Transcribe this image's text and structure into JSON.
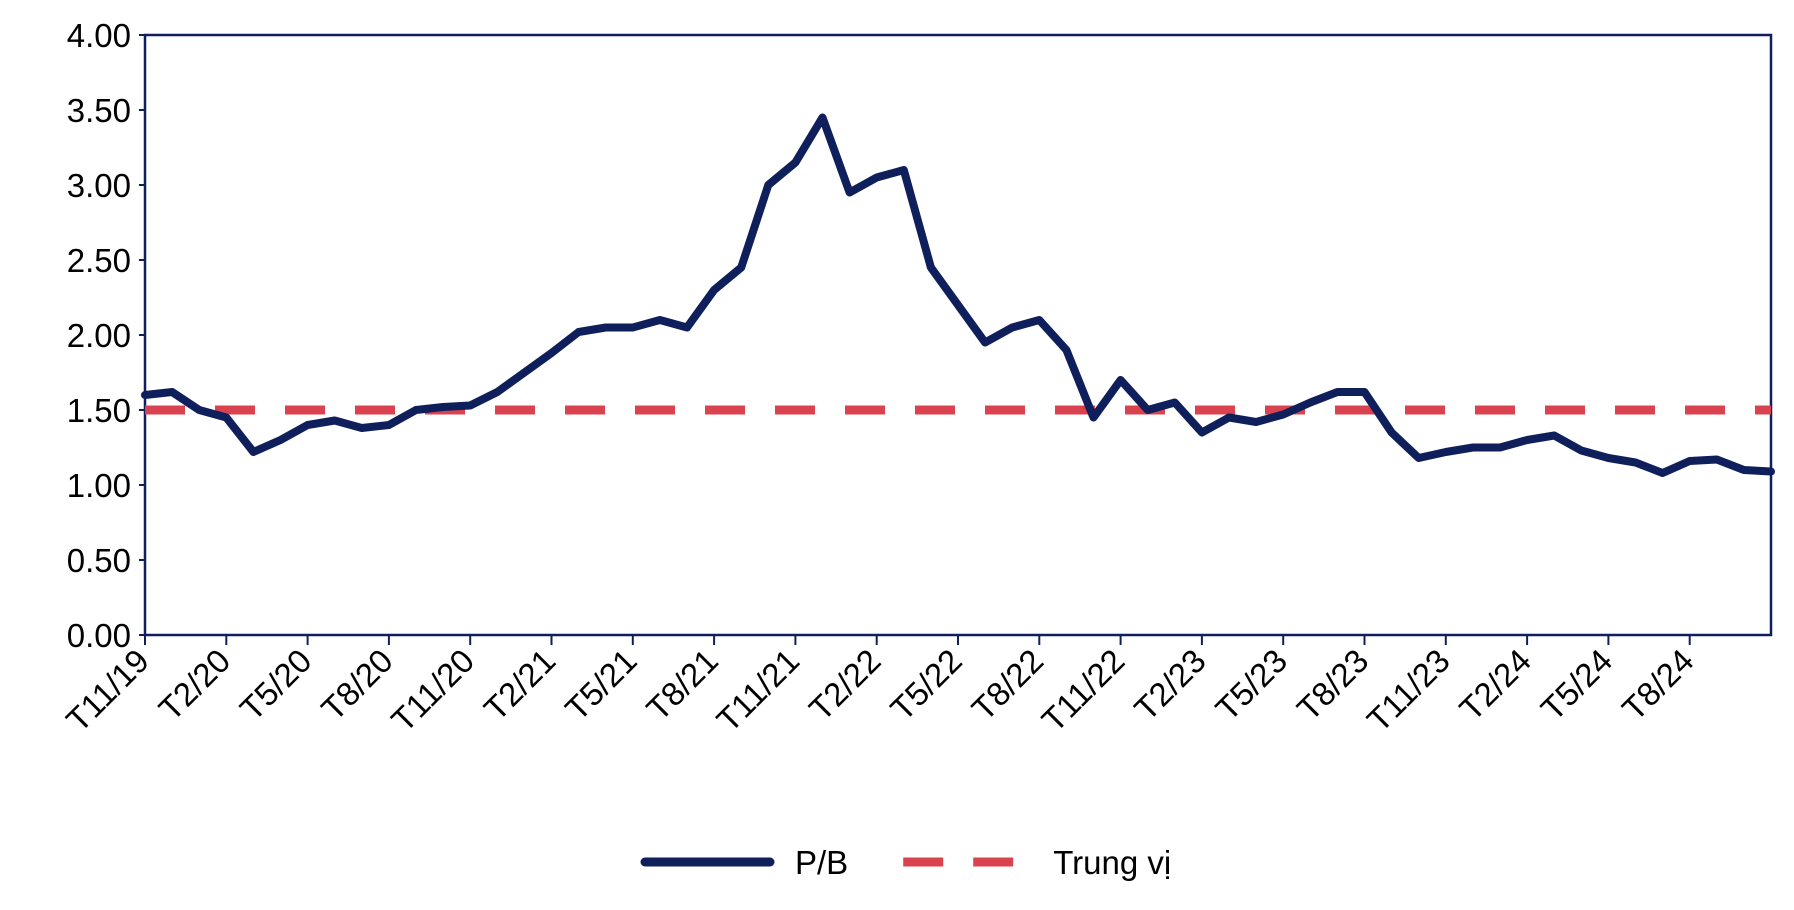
{
  "chart_data": {
    "type": "line",
    "categories": [
      "T11/19",
      null,
      null,
      "T2/20",
      null,
      null,
      "T5/20",
      null,
      null,
      "T8/20",
      null,
      null,
      "T11/20",
      null,
      null,
      "T2/21",
      null,
      null,
      "T5/21",
      null,
      null,
      "T8/21",
      null,
      null,
      "T11/21",
      null,
      null,
      "T2/22",
      null,
      null,
      "T5/22",
      null,
      null,
      "T8/22",
      null,
      null,
      "T11/22",
      null,
      null,
      "T2/23",
      null,
      null,
      "T5/23",
      null,
      null,
      "T8/23",
      null,
      null,
      "T11/23",
      null,
      null,
      "T2/24",
      null,
      null,
      "T5/24",
      null,
      null,
      "T8/24",
      null,
      null,
      null
    ],
    "series": [
      {
        "name": "P/B",
        "color": "#0f1f5c",
        "dashed": false,
        "values": [
          1.6,
          1.62,
          1.5,
          1.45,
          1.22,
          1.3,
          1.4,
          1.43,
          1.38,
          1.4,
          1.5,
          1.52,
          1.53,
          1.62,
          1.75,
          1.88,
          2.02,
          2.05,
          2.05,
          2.1,
          2.05,
          2.3,
          2.45,
          3.0,
          3.15,
          3.45,
          2.95,
          3.05,
          3.1,
          2.45,
          2.2,
          1.95,
          2.05,
          2.1,
          1.9,
          1.45,
          1.7,
          1.5,
          1.55,
          1.35,
          1.45,
          1.42,
          1.47,
          1.55,
          1.62,
          1.62,
          1.35,
          1.18,
          1.22,
          1.25,
          1.25,
          1.3,
          1.33,
          1.23,
          1.18,
          1.15,
          1.08,
          1.16,
          1.17,
          1.1,
          1.09
        ]
      },
      {
        "name": "Trung vị",
        "color": "#d9434f",
        "dashed": true,
        "values": [
          1.5,
          1.5,
          1.5,
          1.5,
          1.5,
          1.5,
          1.5,
          1.5,
          1.5,
          1.5,
          1.5,
          1.5,
          1.5,
          1.5,
          1.5,
          1.5,
          1.5,
          1.5,
          1.5,
          1.5,
          1.5,
          1.5,
          1.5,
          1.5,
          1.5,
          1.5,
          1.5,
          1.5,
          1.5,
          1.5,
          1.5,
          1.5,
          1.5,
          1.5,
          1.5,
          1.5,
          1.5,
          1.5,
          1.5,
          1.5,
          1.5,
          1.5,
          1.5,
          1.5,
          1.5,
          1.5,
          1.5,
          1.5,
          1.5,
          1.5,
          1.5,
          1.5,
          1.5,
          1.5,
          1.5,
          1.5,
          1.5,
          1.5,
          1.5,
          1.5,
          1.5
        ]
      }
    ],
    "ylim": [
      0,
      4
    ],
    "yticks": [
      {
        "value": 0,
        "label": "0.00"
      },
      {
        "value": 0.5,
        "label": "0.50"
      },
      {
        "value": 1,
        "label": "1.00"
      },
      {
        "value": 1.5,
        "label": "1.50"
      },
      {
        "value": 2,
        "label": "2.00"
      },
      {
        "value": 2.5,
        "label": "2.50"
      },
      {
        "value": 3,
        "label": "3.00"
      },
      {
        "value": 3.5,
        "label": "3.50"
      },
      {
        "value": 4,
        "label": "4.00"
      }
    ],
    "grid": false,
    "legend": "bottom"
  }
}
